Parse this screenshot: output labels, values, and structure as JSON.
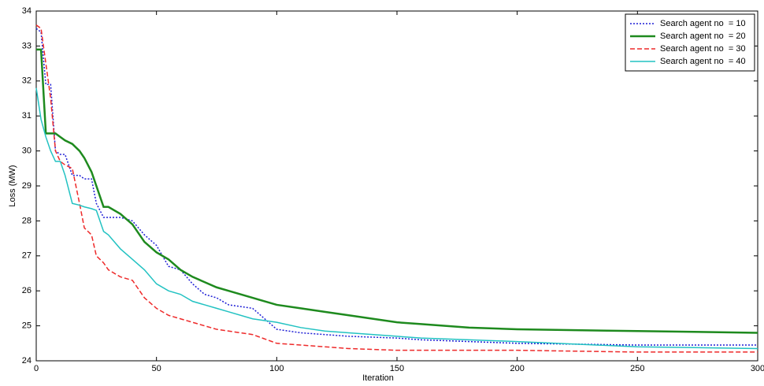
{
  "chart_data": {
    "type": "line",
    "xlabel": "Iteration",
    "ylabel": "Loss (MW)",
    "x": [
      0,
      2,
      4,
      6,
      8,
      10,
      12,
      15,
      18,
      20,
      23,
      25,
      28,
      30,
      35,
      40,
      45,
      50,
      55,
      60,
      65,
      70,
      75,
      80,
      90,
      100,
      110,
      120,
      130,
      150,
      160,
      180,
      200,
      250,
      300
    ],
    "series": [
      {
        "name": "Search agent no  = 10",
        "color": "#1f1fd6",
        "linestyle": "dotted",
        "values": [
          33.5,
          33.4,
          31.9,
          31.9,
          30.0,
          29.9,
          29.9,
          29.3,
          29.3,
          29.2,
          29.2,
          28.5,
          28.1,
          28.1,
          28.1,
          28.0,
          27.6,
          27.3,
          26.7,
          26.6,
          26.2,
          25.9,
          25.8,
          25.6,
          25.5,
          24.9,
          24.8,
          24.75,
          24.7,
          24.65,
          24.6,
          24.55,
          24.5,
          24.45,
          24.45
        ]
      },
      {
        "name": "Search agent no  = 20",
        "color": "#1e8a1e",
        "linestyle": "solid-thick",
        "values": [
          32.9,
          32.9,
          30.5,
          30.5,
          30.5,
          30.4,
          30.3,
          30.2,
          30.0,
          29.8,
          29.4,
          29.0,
          28.4,
          28.4,
          28.2,
          27.9,
          27.4,
          27.1,
          26.9,
          26.6,
          26.4,
          26.25,
          26.1,
          26.0,
          25.8,
          25.6,
          25.5,
          25.4,
          25.3,
          25.1,
          25.05,
          24.95,
          24.9,
          24.85,
          24.8
        ]
      },
      {
        "name": "Search agent no  = 30",
        "color": "#ee2a2a",
        "linestyle": "dashed",
        "values": [
          33.6,
          33.5,
          32.5,
          31.5,
          30.0,
          29.7,
          29.6,
          29.5,
          28.5,
          27.8,
          27.6,
          27.0,
          26.8,
          26.6,
          26.4,
          26.3,
          25.8,
          25.5,
          25.3,
          25.2,
          25.1,
          25.0,
          24.9,
          24.85,
          24.75,
          24.5,
          24.45,
          24.4,
          24.35,
          24.3,
          24.3,
          24.3,
          24.3,
          24.25,
          24.25
        ]
      },
      {
        "name": "Search agent no  = 40",
        "color": "#22c2c2",
        "linestyle": "solid",
        "values": [
          31.8,
          30.9,
          30.4,
          30.0,
          29.7,
          29.7,
          29.3,
          28.5,
          28.45,
          28.4,
          28.35,
          28.3,
          27.7,
          27.6,
          27.2,
          26.9,
          26.6,
          26.2,
          26.0,
          25.9,
          25.7,
          25.6,
          25.5,
          25.4,
          25.2,
          25.1,
          24.95,
          24.85,
          24.8,
          24.7,
          24.65,
          24.6,
          24.55,
          24.4,
          24.35
        ]
      }
    ],
    "xlim": [
      0,
      300
    ],
    "xticks": [
      0,
      50,
      100,
      150,
      200,
      250,
      300
    ],
    "ylim": [
      24,
      34
    ],
    "yticks": [
      24,
      25,
      26,
      27,
      28,
      29,
      30,
      31,
      32,
      33,
      34
    ],
    "legend": "top-right"
  }
}
